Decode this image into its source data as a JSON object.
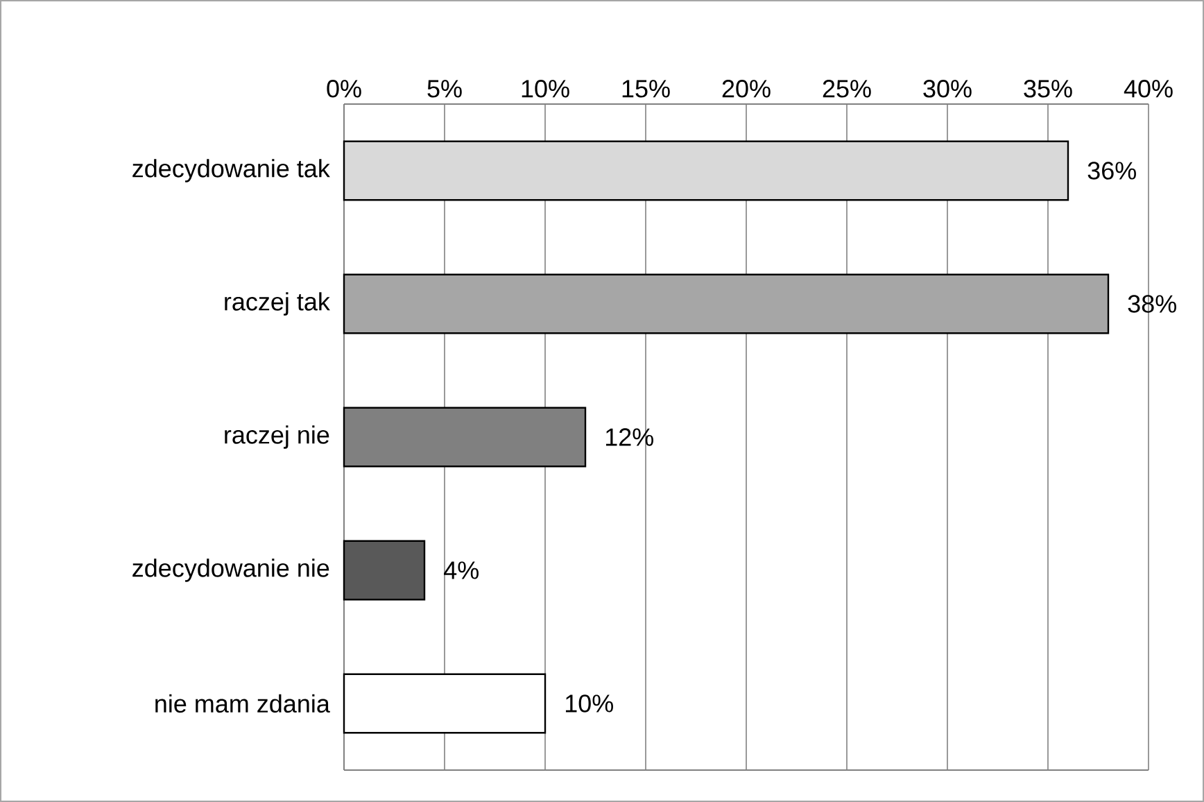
{
  "chart_data": {
    "type": "bar",
    "orientation": "horizontal",
    "categories": [
      "zdecydowanie tak",
      "raczej tak",
      "raczej nie",
      "zdecydowanie nie",
      "nie mam zdania"
    ],
    "values": [
      36,
      38,
      12,
      4,
      10
    ],
    "colors": [
      "#d9d9d9",
      "#a6a6a6",
      "#808080",
      "#595959",
      "#ffffff"
    ],
    "value_labels": [
      "36%",
      "38%",
      "12%",
      "4%",
      "10%"
    ],
    "xlim": [
      0,
      40
    ],
    "xticks": [
      {
        "value": 0,
        "label": "0%"
      },
      {
        "value": 5,
        "label": "5%"
      },
      {
        "value": 10,
        "label": "10%"
      },
      {
        "value": 15,
        "label": "15%"
      },
      {
        "value": 20,
        "label": "20%"
      },
      {
        "value": 25,
        "label": "25%"
      },
      {
        "value": 30,
        "label": "30%"
      },
      {
        "value": 35,
        "label": "35%"
      },
      {
        "value": 40,
        "label": "40%"
      }
    ],
    "grid": "x"
  }
}
